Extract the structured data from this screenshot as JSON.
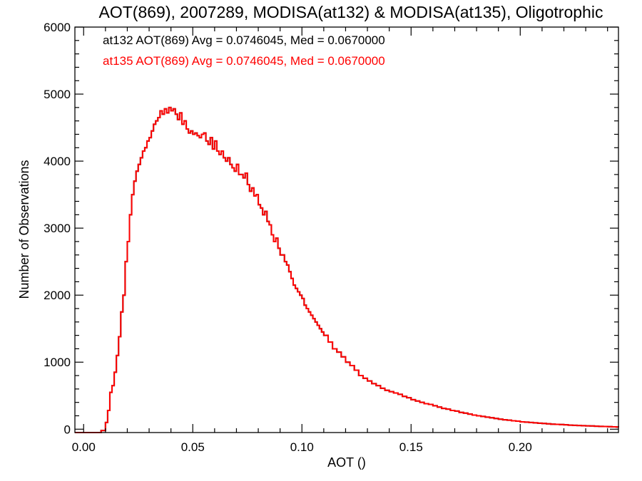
{
  "chart_data": {
    "type": "line",
    "title": "AOT(869), 2007289, MODISA(at132) & MODISA(at135), Oligotrophic",
    "xlabel": "AOT ()",
    "ylabel": "Number of Observations",
    "xlim": [
      -0.004,
      0.245
    ],
    "ylim": [
      -50,
      6000
    ],
    "xticks": [
      0.0,
      0.05,
      0.1,
      0.15,
      0.2
    ],
    "xtick_labels": [
      "0.00",
      "0.05",
      "0.10",
      "0.15",
      "0.20"
    ],
    "yticks": [
      0,
      1000,
      2000,
      3000,
      4000,
      5000,
      6000
    ],
    "ytick_labels": [
      "0",
      "1000",
      "2000",
      "3000",
      "4000",
      "5000",
      "6000"
    ],
    "grid": false,
    "annotations": [
      {
        "text": "at132 AOT(869) Avg = 0.0746045, Med = 0.0670000",
        "color": "#000000"
      },
      {
        "text": "at135 AOT(869) Avg = 0.0746045, Med = 0.0670000",
        "color": "#ff0000"
      }
    ],
    "series": [
      {
        "color": "#000000",
        "step": true,
        "x": [
          -0.004,
          0.0,
          0.004,
          0.008,
          0.01,
          0.011,
          0.012,
          0.013,
          0.014,
          0.015,
          0.016,
          0.017,
          0.018,
          0.019,
          0.02,
          0.021,
          0.022,
          0.023,
          0.024,
          0.025,
          0.026,
          0.027,
          0.028,
          0.029,
          0.03,
          0.031,
          0.032,
          0.033,
          0.034,
          0.035,
          0.036,
          0.037,
          0.038,
          0.039,
          0.04,
          0.041,
          0.042,
          0.043,
          0.044,
          0.045,
          0.046,
          0.047,
          0.048,
          0.049,
          0.05,
          0.051,
          0.052,
          0.053,
          0.054,
          0.055,
          0.056,
          0.057,
          0.058,
          0.059,
          0.06,
          0.061,
          0.062,
          0.063,
          0.064,
          0.065,
          0.066,
          0.067,
          0.068,
          0.069,
          0.07,
          0.071,
          0.072,
          0.073,
          0.074,
          0.075,
          0.076,
          0.077,
          0.078,
          0.079,
          0.08,
          0.081,
          0.082,
          0.083,
          0.084,
          0.085,
          0.086,
          0.087,
          0.088,
          0.089,
          0.09,
          0.091,
          0.092,
          0.093,
          0.094,
          0.095,
          0.096,
          0.097,
          0.098,
          0.099,
          0.1,
          0.101,
          0.102,
          0.103,
          0.104,
          0.105,
          0.106,
          0.107,
          0.108,
          0.109,
          0.11,
          0.112,
          0.114,
          0.116,
          0.118,
          0.12,
          0.122,
          0.124,
          0.126,
          0.128,
          0.13,
          0.132,
          0.134,
          0.136,
          0.138,
          0.14,
          0.142,
          0.144,
          0.146,
          0.148,
          0.15,
          0.152,
          0.154,
          0.156,
          0.158,
          0.16,
          0.162,
          0.164,
          0.166,
          0.168,
          0.17,
          0.172,
          0.174,
          0.176,
          0.178,
          0.18,
          0.182,
          0.184,
          0.186,
          0.188,
          0.19,
          0.192,
          0.194,
          0.196,
          0.198,
          0.2,
          0.202,
          0.204,
          0.206,
          0.208,
          0.21,
          0.212,
          0.214,
          0.216,
          0.218,
          0.22,
          0.222,
          0.224,
          0.226,
          0.228,
          0.23,
          0.232,
          0.234,
          0.236,
          0.238,
          0.24,
          0.242,
          0.244,
          0.245
        ],
        "y": [
          -50,
          -50,
          -50,
          -20,
          100,
          280,
          550,
          650,
          850,
          1100,
          1380,
          1750,
          2000,
          2500,
          2800,
          3200,
          3500,
          3700,
          3850,
          3950,
          4050,
          4150,
          4200,
          4300,
          4350,
          4450,
          4550,
          4600,
          4650,
          4750,
          4700,
          4780,
          4720,
          4800,
          4750,
          4780,
          4700,
          4620,
          4720,
          4550,
          4600,
          4480,
          4420,
          4450,
          4400,
          4420,
          4380,
          4350,
          4400,
          4420,
          4300,
          4250,
          4350,
          4180,
          4300,
          4150,
          4100,
          4150,
          4050,
          4000,
          4050,
          3950,
          3900,
          3850,
          3950,
          3800,
          3800,
          3750,
          3820,
          3650,
          3550,
          3600,
          3480,
          3500,
          3350,
          3300,
          3200,
          3250,
          3100,
          3050,
          2900,
          2800,
          2850,
          2700,
          2600,
          2600,
          2500,
          2450,
          2350,
          2250,
          2150,
          2100,
          2050,
          2000,
          1950,
          1850,
          1800,
          1750,
          1700,
          1650,
          1600,
          1550,
          1500,
          1450,
          1400,
          1300,
          1200,
          1150,
          1080,
          1000,
          950,
          880,
          800,
          760,
          720,
          680,
          650,
          610,
          580,
          560,
          540,
          520,
          490,
          470,
          440,
          420,
          400,
          380,
          370,
          350,
          330,
          310,
          300,
          280,
          270,
          250,
          240,
          225,
          210,
          200,
          190,
          180,
          170,
          160,
          150,
          140,
          135,
          125,
          120,
          110,
          105,
          100,
          95,
          90,
          85,
          80,
          75,
          72,
          70,
          65,
          60,
          58,
          55,
          52,
          50,
          48,
          45,
          42,
          40,
          38,
          35,
          32,
          30
        ]
      },
      {
        "color": "#ff0000",
        "step": true,
        "x": [
          -0.004,
          0.0,
          0.004,
          0.008,
          0.01,
          0.011,
          0.012,
          0.013,
          0.014,
          0.015,
          0.016,
          0.017,
          0.018,
          0.019,
          0.02,
          0.021,
          0.022,
          0.023,
          0.024,
          0.025,
          0.026,
          0.027,
          0.028,
          0.029,
          0.03,
          0.031,
          0.032,
          0.033,
          0.034,
          0.035,
          0.036,
          0.037,
          0.038,
          0.039,
          0.04,
          0.041,
          0.042,
          0.043,
          0.044,
          0.045,
          0.046,
          0.047,
          0.048,
          0.049,
          0.05,
          0.051,
          0.052,
          0.053,
          0.054,
          0.055,
          0.056,
          0.057,
          0.058,
          0.059,
          0.06,
          0.061,
          0.062,
          0.063,
          0.064,
          0.065,
          0.066,
          0.067,
          0.068,
          0.069,
          0.07,
          0.071,
          0.072,
          0.073,
          0.074,
          0.075,
          0.076,
          0.077,
          0.078,
          0.079,
          0.08,
          0.081,
          0.082,
          0.083,
          0.084,
          0.085,
          0.086,
          0.087,
          0.088,
          0.089,
          0.09,
          0.091,
          0.092,
          0.093,
          0.094,
          0.095,
          0.096,
          0.097,
          0.098,
          0.099,
          0.1,
          0.101,
          0.102,
          0.103,
          0.104,
          0.105,
          0.106,
          0.107,
          0.108,
          0.109,
          0.11,
          0.112,
          0.114,
          0.116,
          0.118,
          0.12,
          0.122,
          0.124,
          0.126,
          0.128,
          0.13,
          0.132,
          0.134,
          0.136,
          0.138,
          0.14,
          0.142,
          0.144,
          0.146,
          0.148,
          0.15,
          0.152,
          0.154,
          0.156,
          0.158,
          0.16,
          0.162,
          0.164,
          0.166,
          0.168,
          0.17,
          0.172,
          0.174,
          0.176,
          0.178,
          0.18,
          0.182,
          0.184,
          0.186,
          0.188,
          0.19,
          0.192,
          0.194,
          0.196,
          0.198,
          0.2,
          0.202,
          0.204,
          0.206,
          0.208,
          0.21,
          0.212,
          0.214,
          0.216,
          0.218,
          0.22,
          0.222,
          0.224,
          0.226,
          0.228,
          0.23,
          0.232,
          0.234,
          0.236,
          0.238,
          0.24,
          0.242,
          0.244,
          0.245
        ],
        "y": [
          -50,
          -50,
          -50,
          -20,
          100,
          280,
          550,
          650,
          850,
          1100,
          1380,
          1750,
          2000,
          2500,
          2800,
          3200,
          3500,
          3700,
          3850,
          3950,
          4050,
          4150,
          4200,
          4300,
          4350,
          4450,
          4550,
          4600,
          4650,
          4750,
          4700,
          4780,
          4720,
          4800,
          4750,
          4780,
          4700,
          4620,
          4720,
          4550,
          4600,
          4480,
          4420,
          4450,
          4400,
          4420,
          4380,
          4350,
          4400,
          4420,
          4300,
          4250,
          4350,
          4180,
          4300,
          4150,
          4100,
          4150,
          4050,
          4000,
          4050,
          3950,
          3900,
          3850,
          3950,
          3800,
          3800,
          3750,
          3820,
          3650,
          3550,
          3600,
          3480,
          3500,
          3350,
          3300,
          3200,
          3250,
          3100,
          3050,
          2900,
          2800,
          2850,
          2700,
          2600,
          2600,
          2500,
          2450,
          2350,
          2250,
          2150,
          2100,
          2050,
          2000,
          1950,
          1850,
          1800,
          1750,
          1700,
          1650,
          1600,
          1550,
          1500,
          1450,
          1400,
          1300,
          1200,
          1150,
          1080,
          1000,
          950,
          880,
          800,
          760,
          720,
          680,
          650,
          610,
          580,
          560,
          540,
          520,
          490,
          470,
          440,
          420,
          400,
          380,
          370,
          350,
          330,
          310,
          300,
          280,
          270,
          250,
          240,
          225,
          210,
          200,
          190,
          180,
          170,
          160,
          150,
          140,
          135,
          125,
          120,
          110,
          105,
          100,
          95,
          90,
          85,
          80,
          75,
          72,
          70,
          65,
          60,
          58,
          55,
          52,
          50,
          48,
          45,
          42,
          40,
          38,
          35,
          32,
          30
        ]
      }
    ]
  }
}
